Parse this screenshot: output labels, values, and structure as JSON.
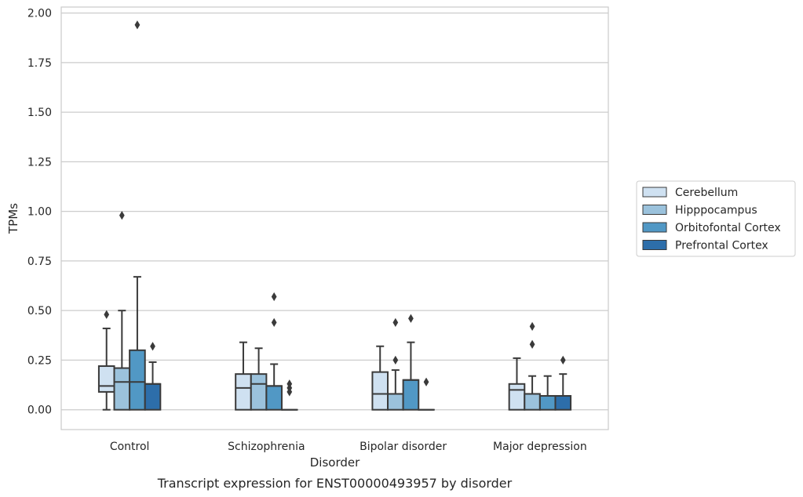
{
  "chart_data": {
    "type": "box",
    "title": "",
    "caption": "Transcript expression for ENST00000493957 by disorder",
    "xlabel": "Disorder",
    "ylabel": "TPMs",
    "ylim": [
      -0.1,
      2.03
    ],
    "yticks": [
      0.0,
      0.25,
      0.5,
      0.75,
      1.0,
      1.25,
      1.5,
      1.75,
      2.0
    ],
    "ytick_labels": [
      "0.00",
      "0.25",
      "0.50",
      "0.75",
      "1.00",
      "1.25",
      "1.50",
      "1.75",
      "2.00"
    ],
    "grid": "horizontal",
    "legend_position": "right",
    "categories": [
      "Control",
      "Schizophrenia",
      "Bipolar disorder",
      "Major depression"
    ],
    "series": [
      {
        "name": "Cerebellum",
        "color": "#cfe1f1",
        "boxes": [
          {
            "whislo": 0.0,
            "q1": 0.09,
            "med": 0.12,
            "q3": 0.22,
            "whishi": 0.41,
            "fliers": [
              0.48
            ]
          },
          {
            "whislo": 0.0,
            "q1": 0.0,
            "med": 0.11,
            "q3": 0.18,
            "whishi": 0.34,
            "fliers": []
          },
          {
            "whislo": 0.0,
            "q1": 0.0,
            "med": 0.08,
            "q3": 0.19,
            "whishi": 0.32,
            "fliers": []
          },
          {
            "whislo": 0.0,
            "q1": 0.0,
            "med": 0.1,
            "q3": 0.13,
            "whishi": 0.26,
            "fliers": []
          }
        ]
      },
      {
        "name": "Hipppocampus",
        "color": "#9bc2dc",
        "boxes": [
          {
            "whislo": 0.0,
            "q1": 0.0,
            "med": 0.14,
            "q3": 0.21,
            "whishi": 0.5,
            "fliers": [
              0.98
            ]
          },
          {
            "whislo": 0.0,
            "q1": 0.0,
            "med": 0.13,
            "q3": 0.18,
            "whishi": 0.31,
            "fliers": []
          },
          {
            "whislo": 0.0,
            "q1": 0.0,
            "med": 0.08,
            "q3": 0.08,
            "whishi": 0.2,
            "fliers": [
              0.25,
              0.44
            ]
          },
          {
            "whislo": 0.0,
            "q1": 0.0,
            "med": 0.08,
            "q3": 0.08,
            "whishi": 0.17,
            "fliers": [
              0.33,
              0.42
            ]
          }
        ]
      },
      {
        "name": "Orbitofontal Cortex",
        "color": "#5198c5",
        "boxes": [
          {
            "whislo": 0.0,
            "q1": 0.0,
            "med": 0.14,
            "q3": 0.3,
            "whishi": 0.67,
            "fliers": [
              1.94
            ]
          },
          {
            "whislo": 0.0,
            "q1": 0.0,
            "med": 0.12,
            "q3": 0.12,
            "whishi": 0.23,
            "fliers": [
              0.44,
              0.57
            ]
          },
          {
            "whislo": 0.0,
            "q1": 0.0,
            "med": 0.15,
            "q3": 0.15,
            "whishi": 0.34,
            "fliers": [
              0.46
            ]
          },
          {
            "whislo": 0.0,
            "q1": 0.0,
            "med": 0.07,
            "q3": 0.07,
            "whishi": 0.17,
            "fliers": []
          }
        ]
      },
      {
        "name": "Prefrontal Cortex",
        "color": "#2d6eaa",
        "boxes": [
          {
            "whislo": 0.0,
            "q1": 0.0,
            "med": 0.13,
            "q3": 0.13,
            "whishi": 0.24,
            "fliers": [
              0.32
            ]
          },
          {
            "whislo": 0.0,
            "q1": 0.0,
            "med": 0.0,
            "q3": 0.0,
            "whishi": 0.0,
            "fliers": [
              0.09,
              0.11,
              0.13
            ]
          },
          {
            "whislo": 0.0,
            "q1": 0.0,
            "med": 0.0,
            "q3": 0.0,
            "whishi": 0.0,
            "fliers": [
              0.14
            ]
          },
          {
            "whislo": 0.0,
            "q1": 0.0,
            "med": 0.07,
            "q3": 0.07,
            "whishi": 0.18,
            "fliers": [
              0.25
            ]
          }
        ]
      }
    ]
  }
}
